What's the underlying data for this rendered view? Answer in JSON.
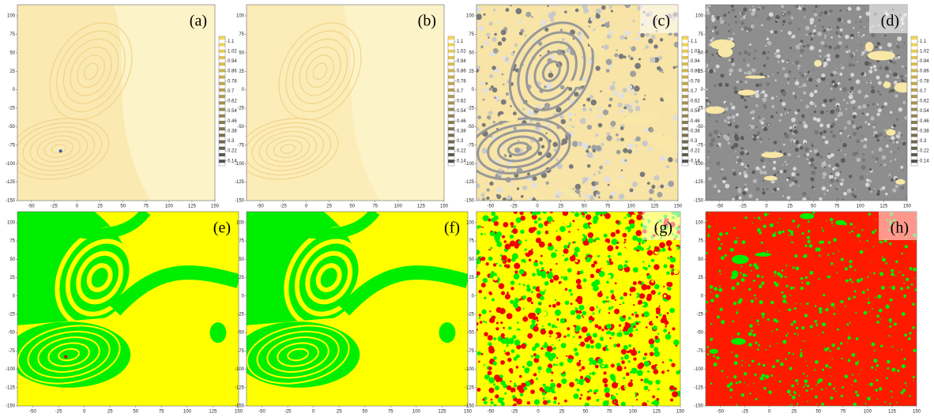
{
  "chart_data": [
    {
      "type": "heatmap",
      "label": "(a)",
      "xlim": [
        -65,
        150
      ],
      "ylim": [
        -150,
        115
      ],
      "xticks": [
        -50,
        -25,
        0,
        25,
        50,
        75,
        100,
        125,
        150
      ],
      "yticks": [
        -150,
        -125,
        -100,
        -75,
        -50,
        -25,
        0,
        25,
        50,
        75,
        100
      ],
      "colorbar": {
        "lim": [
          0.1,
          1.14
        ],
        "ticks": [
          0.14,
          0.22,
          0.3,
          0.38,
          0.46,
          0.54,
          0.62,
          0.7,
          0.78,
          0.86,
          0.94,
          1.02,
          1.1
        ]
      }
    },
    {
      "type": "heatmap",
      "label": "(b)",
      "xlim": [
        -65,
        150
      ],
      "ylim": [
        -150,
        115
      ],
      "xticks": [
        -50,
        -25,
        0,
        25,
        50,
        75,
        100,
        125,
        150
      ],
      "yticks": [
        -150,
        -125,
        -100,
        -75,
        -50,
        -25,
        0,
        25,
        50,
        75,
        100
      ],
      "colorbar": {
        "lim": [
          0.1,
          1.14
        ],
        "ticks": [
          0.14,
          0.22,
          0.3,
          0.38,
          0.46,
          0.54,
          0.62,
          0.7,
          0.78,
          0.86,
          0.94,
          1.02,
          1.1
        ]
      }
    },
    {
      "type": "heatmap",
      "label": "(c)",
      "xlim": [
        -65,
        150
      ],
      "ylim": [
        -150,
        115
      ],
      "xticks": [
        -50,
        -25,
        0,
        25,
        50,
        75,
        100,
        125,
        150
      ],
      "yticks": [
        -150,
        -125,
        -100,
        -75,
        -50,
        -25,
        0,
        25,
        50,
        75,
        100
      ],
      "colorbar": {
        "lim": [
          0.1,
          1.14
        ],
        "ticks": [
          0.14,
          0.22,
          0.3,
          0.38,
          0.46,
          0.54,
          0.62,
          0.7,
          0.78,
          0.86,
          0.94,
          1.02,
          1.1
        ]
      }
    },
    {
      "type": "heatmap",
      "label": "(d)",
      "xlim": [
        -65,
        150
      ],
      "ylim": [
        -150,
        115
      ],
      "xticks": [
        -50,
        -25,
        0,
        25,
        50,
        75,
        100,
        125,
        150
      ],
      "yticks": [
        -150,
        -125,
        -100,
        -75,
        -50,
        -25,
        0,
        25,
        50,
        75,
        100
      ],
      "colorbar": {
        "lim": [
          0.1,
          1.14
        ],
        "ticks": [
          0.14,
          0.22,
          0.3,
          0.38,
          0.46,
          0.54,
          0.62,
          0.7,
          0.78,
          0.86,
          0.94,
          1.02,
          1.1
        ]
      }
    },
    {
      "type": "heatmap",
      "label": "(e)",
      "xlim": [
        -65,
        150
      ],
      "ylim": [
        -150,
        115
      ],
      "xticks": [
        -50,
        -25,
        0,
        25,
        50,
        75,
        100,
        125,
        150
      ],
      "yticks": [
        -150,
        -125,
        -100,
        -75,
        -50,
        -25,
        0,
        25,
        50,
        75,
        100
      ]
    },
    {
      "type": "heatmap",
      "label": "(f)",
      "xlim": [
        -65,
        150
      ],
      "ylim": [
        -150,
        115
      ],
      "xticks": [
        -50,
        -25,
        0,
        25,
        50,
        75,
        100,
        125,
        150
      ],
      "yticks": [
        -150,
        -125,
        -100,
        -75,
        -50,
        -25,
        0,
        25,
        50,
        75,
        100
      ]
    },
    {
      "type": "heatmap",
      "label": "(g)",
      "xlim": [
        -65,
        150
      ],
      "ylim": [
        -150,
        115
      ],
      "xticks": [
        -50,
        -25,
        0,
        25,
        50,
        75,
        100,
        125,
        150
      ],
      "yticks": [
        -150,
        -125,
        -100,
        -75,
        -50,
        -25,
        0,
        25,
        50,
        75,
        100
      ]
    },
    {
      "type": "heatmap",
      "label": "(h)",
      "xlim": [
        -65,
        150
      ],
      "ylim": [
        -150,
        115
      ],
      "xticks": [
        -50,
        -25,
        0,
        25,
        50,
        75,
        100,
        125,
        150
      ],
      "yticks": [
        -150,
        -125,
        -100,
        -75,
        -50,
        -25,
        0,
        25,
        50,
        75,
        100
      ]
    }
  ]
}
